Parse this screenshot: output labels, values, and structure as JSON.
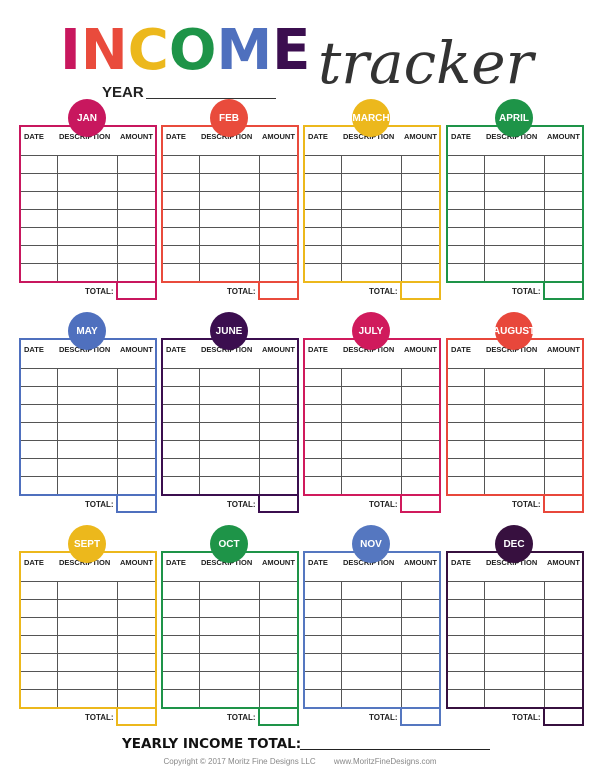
{
  "title": {
    "letters": [
      {
        "char": "I",
        "color": "#c8175e"
      },
      {
        "char": "N",
        "color": "#e94b3c"
      },
      {
        "char": "C",
        "color": "#ecb81c"
      },
      {
        "char": "O",
        "color": "#1e9448"
      },
      {
        "char": "M",
        "color": "#4f70be"
      },
      {
        "char": "E",
        "color": "#3b0e4f"
      }
    ],
    "script": "tracker"
  },
  "year_label": "YEAR",
  "columns": [
    "DATE",
    "DESCRIPTION",
    "AMOUNT"
  ],
  "total_label": "TOTAL:",
  "months": [
    {
      "name": "JAN",
      "color": "#c8175e"
    },
    {
      "name": "FEB",
      "color": "#e94b3c"
    },
    {
      "name": "MARCH",
      "color": "#ecb81c"
    },
    {
      "name": "APRIL",
      "color": "#1e9448"
    },
    {
      "name": "MAY",
      "color": "#4f70be"
    },
    {
      "name": "JUNE",
      "color": "#3b0e4f"
    },
    {
      "name": "JULY",
      "color": "#d01a5c"
    },
    {
      "name": "AUGUST",
      "color": "#e8473b"
    },
    {
      "name": "SEPT",
      "color": "#ecb81c"
    },
    {
      "name": "OCT",
      "color": "#1e9448"
    },
    {
      "name": "NOV",
      "color": "#5577c0"
    },
    {
      "name": "DEC",
      "color": "#37103f"
    }
  ],
  "yearly_total_label": "YEARLY INCOME TOTAL:",
  "footer": {
    "copyright": "Copyright © 2017 Moritz Fine Designs LLC",
    "website": "www.MoritzFineDesigns.com"
  }
}
